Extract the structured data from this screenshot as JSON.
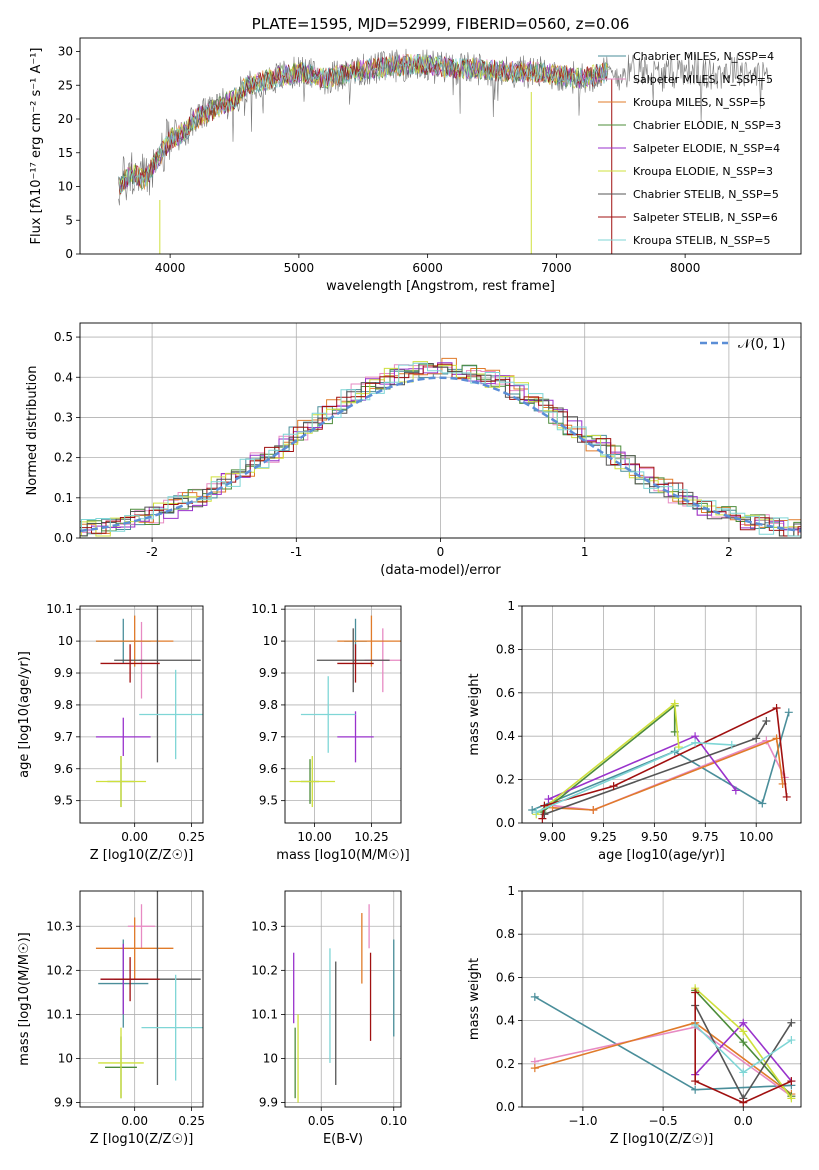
{
  "colors": {
    "Chabrier MILES": "#4a8e9a",
    "Salpeter MILES": "#e78ac3",
    "Kroupa MILES": "#e07b2a",
    "Chabrier ELODIE": "#4c8c3a",
    "Salpeter ELODIE": "#9932cc",
    "Kroupa ELODIE": "#cfe03c",
    "Chabrier STELIB": "#555555",
    "Salpeter STELIB": "#a01010",
    "Kroupa STELIB": "#7fd6d6",
    "normal_curve": "#5b8ed6",
    "grid": "#b0b0b0"
  },
  "chart_data": [
    {
      "type": "line",
      "title": "PLATE=1595, MJD=52999, FIBERID=0560, z=0.06",
      "xlabel": "wavelength [Angstrom, rest frame]",
      "ylabel": "Flux [fλ10⁻¹⁷ erg cm⁻² s⁻¹ A⁻¹]",
      "xlim": [
        3300,
        8900
      ],
      "ylim": [
        0,
        32
      ],
      "xticks": [
        4000,
        5000,
        6000,
        7000,
        8000
      ],
      "yticks": [
        0,
        5,
        10,
        15,
        20,
        25,
        30
      ],
      "grid": false,
      "legend_position": "right",
      "spectrum_envelope": {
        "x": [
          3600,
          3700,
          3800,
          3900,
          4000,
          4100,
          4200,
          4300,
          4400,
          4500,
          4600,
          4700,
          4800,
          4900,
          5000,
          5200,
          5400,
          5600,
          5800,
          6000,
          6200,
          6400,
          6600,
          6800,
          7000,
          7200,
          7400
        ],
        "y": [
          10,
          12,
          11,
          14,
          17,
          18,
          20,
          21,
          22,
          23,
          25,
          25.5,
          26,
          26.5,
          27,
          26,
          27,
          27.5,
          28,
          28,
          27.5,
          27.5,
          27,
          27,
          26.5,
          26,
          27
        ]
      },
      "series": [
        {
          "name": "Chabrier MILES, N_SSP=4"
        },
        {
          "name": "Salpeter MILES, N_SSP=5"
        },
        {
          "name": "Kroupa MILES, N_SSP=5"
        },
        {
          "name": "Chabrier ELODIE, N_SSP=3"
        },
        {
          "name": "Salpeter ELODIE, N_SSP=4"
        },
        {
          "name": "Kroupa ELODIE, N_SSP=3"
        },
        {
          "name": "Chabrier STELIB, N_SSP=5"
        },
        {
          "name": "Salpeter STELIB, N_SSP=6"
        },
        {
          "name": "Kroupa STELIB, N_SSP=5"
        }
      ]
    },
    {
      "type": "line",
      "xlabel": "(data-model)/error",
      "ylabel": "Normed distribution",
      "xlim": [
        -2.5,
        2.5
      ],
      "ylim": [
        0,
        0.535
      ],
      "xticks": [
        -2,
        -1,
        0,
        1,
        2
      ],
      "yticks": [
        0.0,
        0.1,
        0.2,
        0.3,
        0.4,
        0.5
      ],
      "grid": true,
      "legend": [
        "𝒩(0, 1)"
      ],
      "legend_position": "top-right"
    },
    {
      "type": "scatter",
      "xlabel": "Z [log10(Z/Z☉)]",
      "ylabel": "age [log10(age/yr)]",
      "xlim": [
        -0.24,
        0.3
      ],
      "ylim": [
        9.43,
        10.11
      ],
      "xticks": [
        0.0,
        0.25
      ],
      "xticklabels": [
        "0.00",
        "0.25"
      ],
      "yticks": [
        9.5,
        9.6,
        9.7,
        9.8,
        9.9,
        10.0,
        10.1
      ],
      "grid": true
    },
    {
      "type": "scatter",
      "xlabel": "mass [log10(M/M☉)]",
      "xlim": [
        9.87,
        10.38
      ],
      "ylim": [
        9.43,
        10.11
      ],
      "xticks": [
        10.0,
        10.25
      ],
      "xticklabels": [
        "10.00",
        "10.25"
      ],
      "yticks": [
        9.5,
        9.6,
        9.7,
        9.8,
        9.9,
        10.0,
        10.1
      ],
      "grid": true
    },
    {
      "type": "line",
      "xlabel": "age [log10(age/yr)]",
      "ylabel": "mass weight",
      "xlim": [
        8.85,
        10.22
      ],
      "ylim": [
        0,
        1
      ],
      "xticks": [
        9.0,
        9.25,
        9.5,
        9.75,
        10.0
      ],
      "xticklabels": [
        "9.00",
        "9.25",
        "9.50",
        "9.75",
        "10.00"
      ],
      "yticks": [
        0.0,
        0.2,
        0.4,
        0.6,
        0.8,
        1.0
      ],
      "grid": true
    },
    {
      "type": "scatter",
      "xlabel": "Z [log10(Z/Z☉)]",
      "ylabel": "mass [log10(M/M☉)]",
      "xlim": [
        -0.24,
        0.3
      ],
      "ylim": [
        9.89,
        10.38
      ],
      "xticks": [
        0.0,
        0.25
      ],
      "xticklabels": [
        "0.00",
        "0.25"
      ],
      "yticks": [
        9.9,
        10.0,
        10.1,
        10.2,
        10.3
      ],
      "grid": true
    },
    {
      "type": "scatter",
      "xlabel": "E(B-V)",
      "xlim": [
        0.025,
        0.105
      ],
      "ylim": [
        9.89,
        10.38
      ],
      "xticks": [
        0.05,
        0.1
      ],
      "xticklabels": [
        "0.05",
        "0.10"
      ],
      "yticks": [
        9.9,
        10.0,
        10.1,
        10.2,
        10.3
      ],
      "grid": true
    },
    {
      "type": "line",
      "xlabel": "Z [log10(Z/Z☉)]",
      "ylabel": "mass weight",
      "xlim": [
        -1.38,
        0.36
      ],
      "ylim": [
        0,
        1
      ],
      "xticks": [
        -1.0,
        -0.5,
        0.0
      ],
      "xticklabels": [
        "−1.0",
        "−0.5",
        "0.0"
      ],
      "yticks": [
        0.0,
        0.2,
        0.4,
        0.6,
        0.8,
        1.0
      ],
      "grid": true
    }
  ]
}
